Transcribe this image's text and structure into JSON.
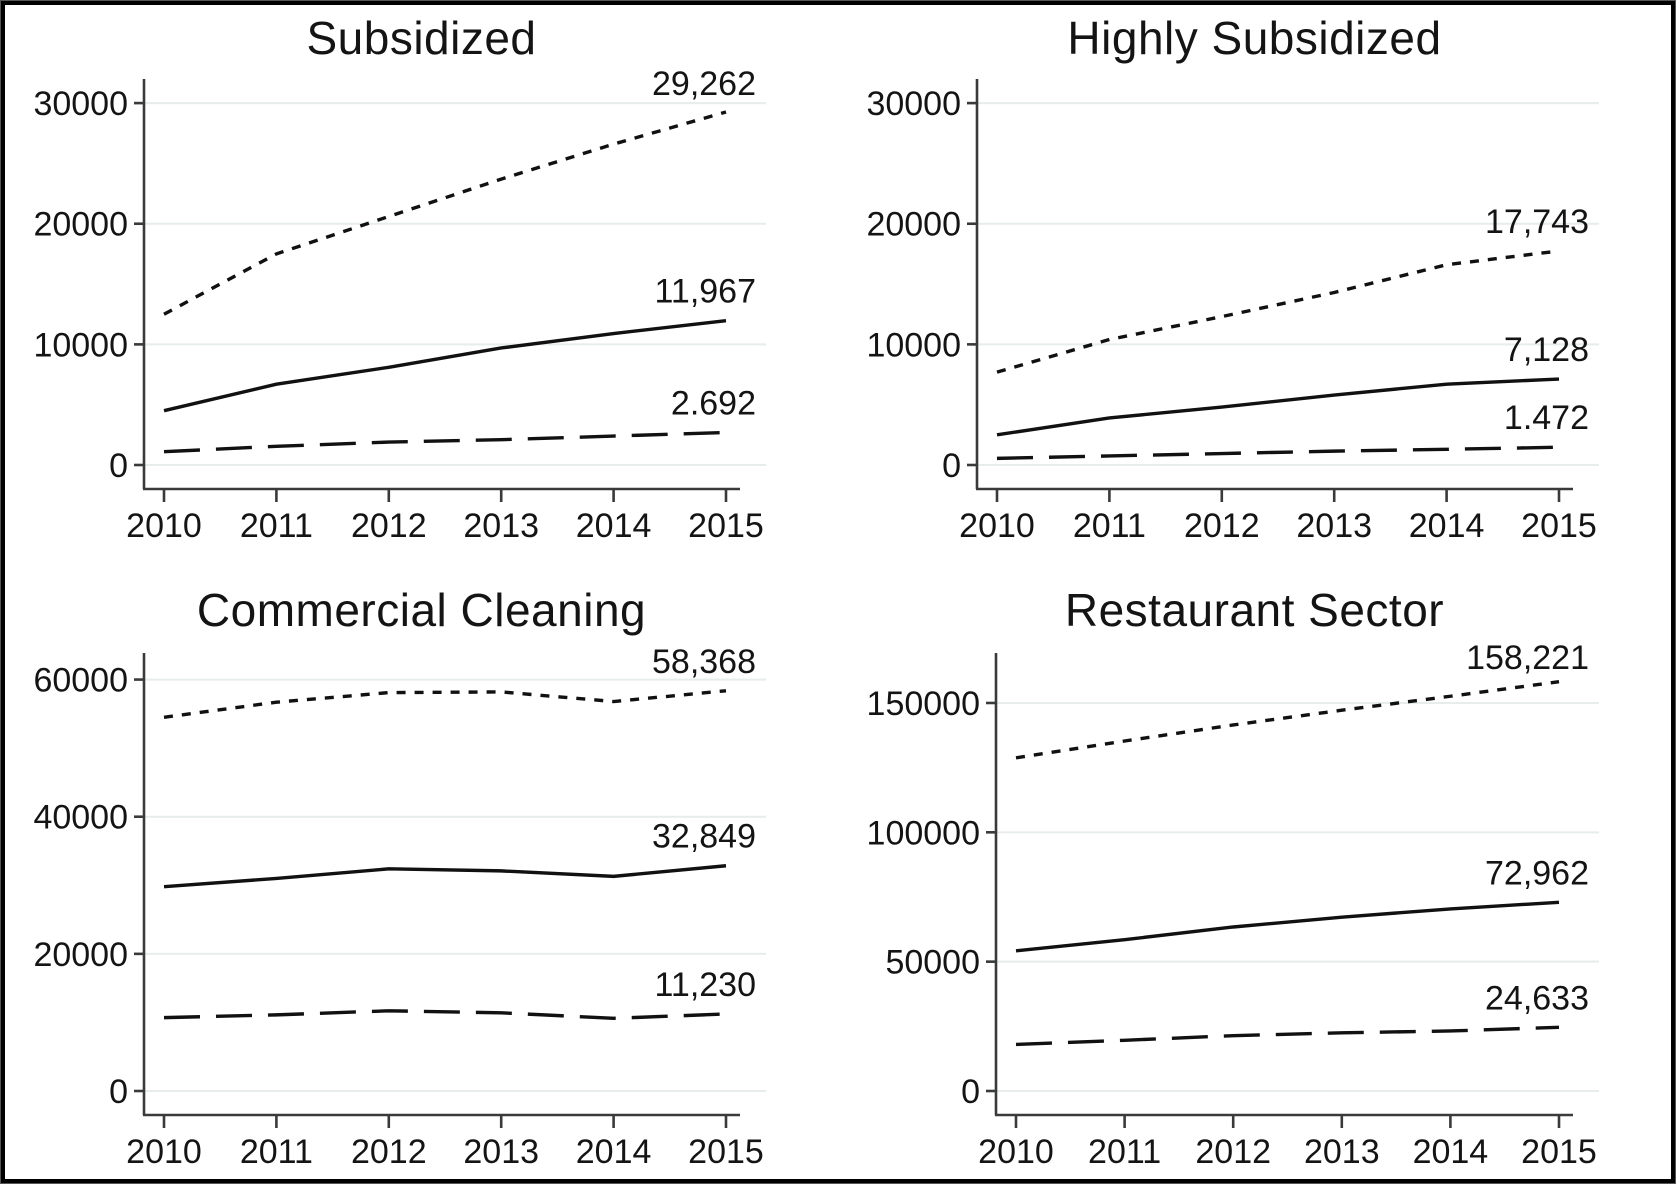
{
  "frame": {
    "background_color": "#ffffff",
    "border_color": "#000000",
    "line_color": "#111111",
    "gridline_color": "#e7ecec",
    "axis_color": "#3a3a3a",
    "text_color": "#141414"
  },
  "chart_data": [
    {
      "type": "line",
      "title": "Subsidized",
      "x": [
        2010,
        2011,
        2012,
        2013,
        2014,
        2015
      ],
      "x_tick_labels": [
        "2010",
        "2011",
        "2012",
        "2013",
        "2014",
        "2015"
      ],
      "yticks": [
        0,
        10000,
        20000,
        30000
      ],
      "ytick_labels": [
        "0",
        "10000",
        "20000",
        "30000"
      ],
      "ylim": [
        0,
        31500
      ],
      "grid": "horizontal",
      "legend": "none",
      "series": [
        {
          "name": "short-dash",
          "dash": "short",
          "values": [
            12500,
            17500,
            20600,
            23700,
            26600,
            29262
          ],
          "end_label": "29,262"
        },
        {
          "name": "solid",
          "dash": "solid",
          "values": [
            4500,
            6700,
            8100,
            9700,
            10900,
            11967
          ],
          "end_label": "11,967"
        },
        {
          "name": "long-dash",
          "dash": "long",
          "values": [
            1100,
            1550,
            1900,
            2100,
            2400,
            2692
          ],
          "end_label": "2.692"
        }
      ]
    },
    {
      "type": "line",
      "title": "Highly Subsidized",
      "x": [
        2010,
        2011,
        2012,
        2013,
        2014,
        2015
      ],
      "x_tick_labels": [
        "2010",
        "2011",
        "2012",
        "2013",
        "2014",
        "2015"
      ],
      "yticks": [
        0,
        10000,
        20000,
        30000
      ],
      "ytick_labels": [
        "0",
        "10000",
        "20000",
        "30000"
      ],
      "ylim": [
        0,
        31500
      ],
      "grid": "horizontal",
      "legend": "none",
      "series": [
        {
          "name": "short-dash",
          "dash": "short",
          "values": [
            7700,
            10400,
            12300,
            14300,
            16600,
            17743
          ],
          "end_label": "17,743"
        },
        {
          "name": "solid",
          "dash": "solid",
          "values": [
            2500,
            3900,
            4800,
            5800,
            6700,
            7128
          ],
          "end_label": "7,128"
        },
        {
          "name": "long-dash",
          "dash": "long",
          "values": [
            550,
            750,
            950,
            1150,
            1300,
            1472
          ],
          "end_label": "1.472"
        }
      ]
    },
    {
      "type": "line",
      "title": "Commercial Cleaning",
      "x": [
        2010,
        2011,
        2012,
        2013,
        2014,
        2015
      ],
      "x_tick_labels": [
        "2010",
        "2011",
        "2012",
        "2013",
        "2014",
        "2015"
      ],
      "yticks": [
        0,
        20000,
        40000,
        60000
      ],
      "ytick_labels": [
        "0",
        "20000",
        "40000",
        "60000"
      ],
      "ylim": [
        0,
        63000
      ],
      "grid": "horizontal",
      "legend": "none",
      "series": [
        {
          "name": "short-dash",
          "dash": "short",
          "values": [
            54500,
            56700,
            58100,
            58200,
            56800,
            58368
          ],
          "end_label": "58,368"
        },
        {
          "name": "solid",
          "dash": "solid",
          "values": [
            29800,
            31000,
            32400,
            32100,
            31300,
            32849
          ],
          "end_label": "32,849"
        },
        {
          "name": "long-dash",
          "dash": "long",
          "values": [
            10700,
            11100,
            11700,
            11400,
            10600,
            11230
          ],
          "end_label": "11,230"
        }
      ]
    },
    {
      "type": "line",
      "title": "Restaurant Sector",
      "x": [
        2010,
        2011,
        2012,
        2013,
        2014,
        2015
      ],
      "x_tick_labels": [
        "2010",
        "2011",
        "2012",
        "2013",
        "2014",
        "2015"
      ],
      "yticks": [
        0,
        50000,
        100000,
        150000
      ],
      "ytick_labels": [
        "0",
        "50000",
        "100000",
        "150000"
      ],
      "ylim": [
        0,
        167000
      ],
      "grid": "horizontal",
      "legend": "none",
      "series": [
        {
          "name": "short-dash",
          "dash": "short",
          "values": [
            128800,
            135300,
            141500,
            147200,
            152600,
            158221
          ],
          "end_label": "158,221"
        },
        {
          "name": "solid",
          "dash": "solid",
          "values": [
            54200,
            58500,
            63400,
            67200,
            70400,
            72962
          ],
          "end_label": "72,962"
        },
        {
          "name": "long-dash",
          "dash": "long",
          "values": [
            18000,
            19600,
            21400,
            22500,
            23200,
            24633
          ],
          "end_label": "24,633"
        }
      ]
    }
  ]
}
